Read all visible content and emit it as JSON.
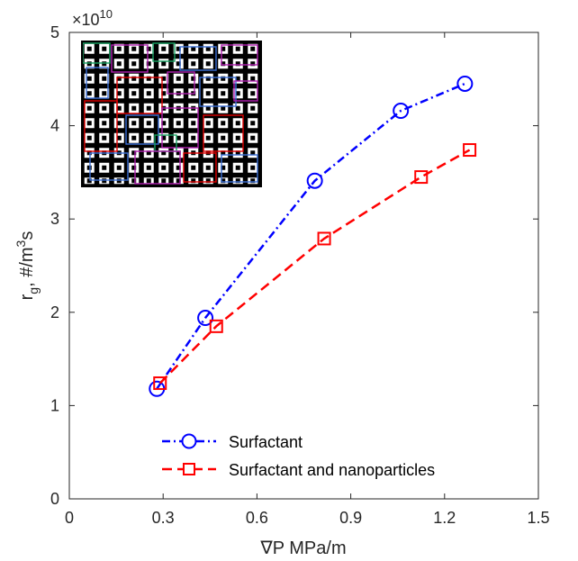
{
  "chart_data": {
    "type": "line",
    "xlabel": "∇P MPa/m",
    "ylabel_main": "r",
    "ylabel_sub": "g",
    "ylabel_mid": ", #/m",
    "ylabel_sup": "3",
    "ylabel_end": "s",
    "y_multiplier": {
      "base": "×10",
      "exponent": "10"
    },
    "xlim": [
      0,
      1.5
    ],
    "ylim": [
      0,
      5
    ],
    "x_ticks": [
      0,
      0.3,
      0.6,
      0.9,
      1.2,
      1.5
    ],
    "x_tick_labels": [
      "0",
      "0.3",
      "0.6",
      "0.9",
      "1.2",
      "1.5"
    ],
    "y_ticks": [
      0,
      1,
      2,
      3,
      4,
      5
    ],
    "y_tick_labels": [
      "0",
      "1",
      "2",
      "3",
      "4",
      "5"
    ],
    "grid": false,
    "legend_position": "bottom-right",
    "series": [
      {
        "name": "Surfactant",
        "color": "#0000ff",
        "marker": "circle",
        "line_style": "dash-dot",
        "x": [
          0.28,
          0.435,
          0.785,
          1.06,
          1.265
        ],
        "y": [
          1.18,
          1.94,
          3.41,
          4.16,
          4.45
        ]
      },
      {
        "name": "Surfactant and nanoparticles",
        "color": "#ff0000",
        "marker": "square",
        "line_style": "dashed",
        "x": [
          0.29,
          0.47,
          0.815,
          1.125,
          1.28
        ],
        "y": [
          1.24,
          1.85,
          2.79,
          3.45,
          3.74
        ]
      }
    ],
    "inset": {
      "description": "pore-network micromodel pattern",
      "frame_color": "#000000",
      "overlay_colors": [
        "#e00000",
        "#3b6fd6",
        "#b020b0",
        "#16a060"
      ]
    }
  }
}
